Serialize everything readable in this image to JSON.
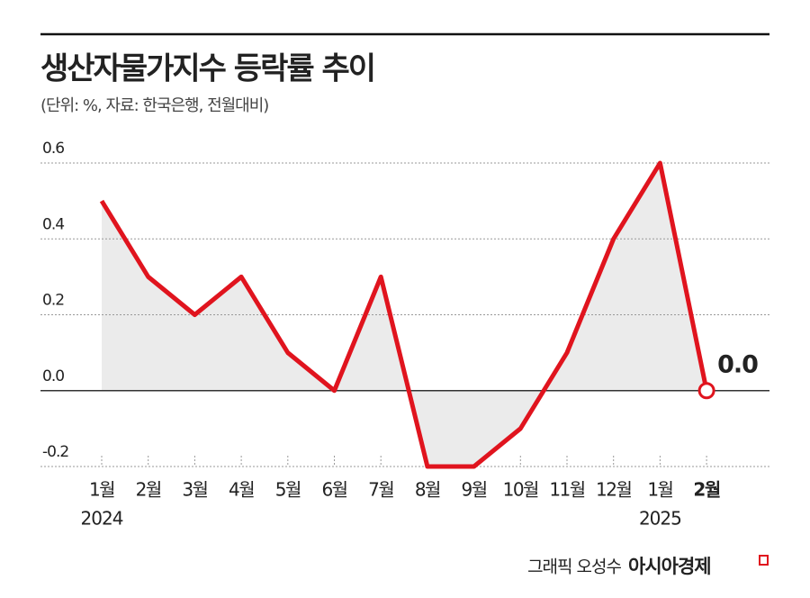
{
  "chart_data": {
    "type": "line",
    "title": "생산자물가지수 등락률 추이",
    "subtitle": "(단위: %, 자료: 한국은행, 전월대비)",
    "categories": [
      "1월",
      "2월",
      "3월",
      "4월",
      "5월",
      "6월",
      "7월",
      "8월",
      "9월",
      "10월",
      "11월",
      "12월",
      "1월",
      "2월"
    ],
    "category_years": [
      "2024",
      null,
      null,
      null,
      null,
      null,
      null,
      null,
      null,
      null,
      null,
      null,
      "2025",
      null
    ],
    "series": [
      {
        "color": "#e0141e",
        "values": [
          0.5,
          0.3,
          0.2,
          0.3,
          0.1,
          0.0,
          0.3,
          -0.2,
          -0.2,
          -0.1,
          0.1,
          0.4,
          0.6,
          0.0
        ],
        "value_labels": [
          null,
          null,
          null,
          null,
          null,
          null,
          null,
          null,
          null,
          null,
          null,
          null,
          null,
          "0.0"
        ]
      }
    ],
    "ylim": [
      -0.2,
      0.6
    ],
    "yticks": [
      -0.2,
      {
        "value": 0,
        "label": "0.0"
      },
      0.2,
      0.4,
      0.6
    ],
    "grid": true
  },
  "footer": {
    "graphic": "그래픽 오성수",
    "brand": "아시아경제"
  }
}
